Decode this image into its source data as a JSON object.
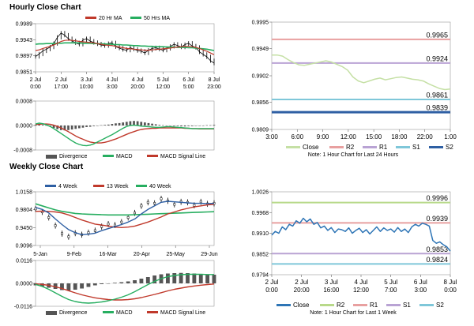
{
  "titles": {
    "hourly": "Hourly Close Chart",
    "weekly": "Weekly Close Chart"
  },
  "chart_data": [
    {
      "id": "hourly_price",
      "type": "line",
      "legend": [
        "20 Hr MA",
        "50 Hrs MA"
      ],
      "ylim": [
        0.9851,
        0.9989
      ],
      "yticks": [
        "0.9989",
        "0.9943",
        "0.9897",
        "0.9851"
      ],
      "yvals": [
        0.9989,
        0.9943,
        0.9897,
        0.9851
      ],
      "xticks": [
        [
          "2 Jul",
          "0:00"
        ],
        [
          "2 Jul",
          "17:00"
        ],
        [
          "3 Jul",
          "10:00"
        ],
        [
          "4 Jul",
          "3:00"
        ],
        [
          "4 Jul",
          "20:00"
        ],
        [
          "5 Jul",
          "12:00"
        ],
        [
          "6 Jul",
          "5:00"
        ],
        [
          "8 Jul",
          "23:00"
        ]
      ],
      "series": [
        {
          "name": "Close",
          "values": [
            0.9895,
            0.9902,
            0.9911,
            0.9916,
            0.9922,
            0.9932,
            0.995,
            0.9962,
            0.9956,
            0.9946,
            0.994,
            0.9934,
            0.993,
            0.9942,
            0.9946,
            0.9939,
            0.9935,
            0.9931,
            0.9928,
            0.9926,
            0.9932,
            0.9934,
            0.9923,
            0.9919,
            0.9915,
            0.9913,
            0.992,
            0.9916,
            0.9912,
            0.991,
            0.9905,
            0.9913,
            0.9918,
            0.992,
            0.9916,
            0.9913,
            0.9918,
            0.9924,
            0.993,
            0.9926,
            0.9922,
            0.9929,
            0.9933,
            0.9925,
            0.9921,
            0.9908,
            0.9901,
            0.9894,
            0.9883,
            0.9876
          ]
        },
        {
          "name": "20 Hr MA",
          "values": [
            0.9912,
            0.9914,
            0.9918,
            0.9921,
            0.9924,
            0.9928,
            0.9933,
            0.9938,
            0.9941,
            0.9942,
            0.9941,
            0.994,
            0.9938,
            0.9937,
            0.9936,
            0.9935,
            0.9934,
            0.9932,
            0.993,
            0.9928,
            0.9927,
            0.9926,
            0.9924,
            0.9922,
            0.992,
            0.9918,
            0.9917,
            0.9916,
            0.9915,
            0.9914,
            0.9913,
            0.9913,
            0.9914,
            0.9915,
            0.9916,
            0.9917,
            0.9918,
            0.9919,
            0.9921,
            0.9922,
            0.9923,
            0.9924,
            0.9924,
            0.9923,
            0.9921,
            0.9918,
            0.9914,
            0.991,
            0.9905,
            0.99
          ]
        },
        {
          "name": "50 Hrs MA",
          "values": [
            0.993,
            0.9931,
            0.9931,
            0.9932,
            0.9932,
            0.9932,
            0.9933,
            0.9933,
            0.9934,
            0.9934,
            0.9934,
            0.9934,
            0.9934,
            0.9933,
            0.9933,
            0.9933,
            0.9932,
            0.9932,
            0.9931,
            0.9931,
            0.993,
            0.993,
            0.9929,
            0.9929,
            0.9928,
            0.9928,
            0.9927,
            0.9926,
            0.9926,
            0.9925,
            0.9925,
            0.9924,
            0.9924,
            0.9923,
            0.9923,
            0.9923,
            0.9922,
            0.9922,
            0.9922,
            0.9921,
            0.9921,
            0.9921,
            0.992,
            0.992,
            0.9919,
            0.9918,
            0.9917,
            0.9916,
            0.9914,
            0.9912
          ]
        }
      ],
      "colors": {
        "close": "#000000",
        "ma1": "#c0392b",
        "ma2": "#27ae60"
      }
    },
    {
      "id": "hourly_macd",
      "type": "bar+line",
      "ylim": [
        -0.0008,
        0.0008
      ],
      "yticks": [
        "0.0008",
        "0.0000",
        "-0.0008"
      ],
      "yvals": [
        0.0008,
        0.0,
        -0.0008
      ],
      "legend": [
        "Divergence",
        "MACD",
        "MACD Signal Line"
      ],
      "series": [
        {
          "name": "Divergence",
          "values": [
            2e-05,
            3e-05,
            2e-05,
            1e-05,
            -3e-05,
            -8e-05,
            -0.00012,
            -0.00015,
            -0.00016,
            -0.00015,
            -0.00013,
            -0.00011,
            -9e-05,
            -7e-05,
            -5e-05,
            -4e-05,
            -2e-05,
            -1e-05,
            1e-05,
            2e-05,
            3e-05,
            5e-05,
            7e-05,
            8e-05,
            0.0001,
            0.00012,
            0.00014,
            0.00015,
            0.00014,
            0.00012,
            0.0001,
            8e-05,
            6e-05,
            4e-05,
            2e-05,
            1e-05,
            0.0,
            -1e-05,
            -2e-05,
            -2e-05,
            -3e-05,
            -3e-05,
            -2e-05,
            -2e-05,
            -1e-05,
            -1e-05,
            0.0,
            1e-05,
            1e-05,
            2e-05
          ]
        },
        {
          "name": "MACD",
          "values": [
            5e-05,
            8e-05,
            6e-05,
            2e-05,
            -3e-05,
            -0.0001,
            -0.00018,
            -0.00026,
            -0.00034,
            -0.00042,
            -0.0005,
            -0.00057,
            -0.00062,
            -0.00065,
            -0.00066,
            -0.00064,
            -0.0006,
            -0.00054,
            -0.00048,
            -0.00042,
            -0.00036,
            -0.0003,
            -0.00023,
            -0.00016,
            -9e-05,
            -3e-05,
            0.0,
            1e-05,
            0.0,
            -2e-05,
            -3e-05,
            -4e-05,
            -5e-05,
            -6e-05,
            -6e-05,
            -5e-05,
            -4e-05,
            -4e-05,
            -5e-05,
            -6e-05,
            -7e-05,
            -8e-05,
            -9e-05,
            -0.0001,
            -0.0001,
            -0.0001,
            -0.0001,
            -0.0001,
            -0.0001,
            -0.0001
          ]
        },
        {
          "name": "MACD Signal Line",
          "values": [
            3e-05,
            4e-05,
            5e-05,
            5e-05,
            4e-05,
            1e-05,
            -3e-05,
            -8e-05,
            -0.00014,
            -0.0002,
            -0.00027,
            -0.00034,
            -0.0004,
            -0.00045,
            -0.0005,
            -0.00054,
            -0.00056,
            -0.00057,
            -0.00057,
            -0.00055,
            -0.00052,
            -0.00048,
            -0.00044,
            -0.00039,
            -0.00034,
            -0.00029,
            -0.00024,
            -0.0002,
            -0.00016,
            -0.00013,
            -0.00011,
            -0.0001,
            -9e-05,
            -9e-05,
            -8e-05,
            -8e-05,
            -8e-05,
            -8e-05,
            -8e-05,
            -8e-05,
            -8e-05,
            -9e-05,
            -9e-05,
            -0.0001,
            -0.0001,
            -0.00011,
            -0.00011,
            -0.00011,
            -0.00011,
            -0.00011
          ]
        }
      ],
      "colors": {
        "div": "#555555",
        "macd": "#27ae60",
        "signal": "#c0392b"
      }
    },
    {
      "id": "hourly_levels",
      "type": "line",
      "ylim": [
        0.9809,
        0.9995
      ],
      "yticks": [
        "0.9995",
        "0.9949",
        "0.9902",
        "0.9856",
        "0.9809"
      ],
      "yvals": [
        0.9995,
        0.9949,
        0.9902,
        0.9856,
        0.9809
      ],
      "xticks": [
        "3:00",
        "6:00",
        "9:00",
        "12:00",
        "15:00",
        "18:00",
        "22:00",
        "1:00"
      ],
      "levels": [
        {
          "name": "R2",
          "value": 0.9965,
          "label": "0.9965",
          "color": "#e8a0a0"
        },
        {
          "name": "R1",
          "value": 0.9924,
          "label": "0.9924",
          "color": "#b9a3d4"
        },
        {
          "name": "S1",
          "value": 0.9861,
          "label": "0.9861",
          "color": "#7fc7d9"
        },
        {
          "name": "S2",
          "value": 0.9839,
          "label": "0.9839",
          "color": "#2e5fa3"
        }
      ],
      "close": {
        "name": "Close",
        "color": "#c5e0a5",
        "values": [
          0.9938,
          0.9938,
          0.9936,
          0.993,
          0.9925,
          0.9921,
          0.992,
          0.9922,
          0.9924,
          0.9926,
          0.9928,
          0.9926,
          0.9922,
          0.9918,
          0.9912,
          0.99,
          0.9893,
          0.989,
          0.9893,
          0.9896,
          0.9898,
          0.9895,
          0.9897,
          0.9899,
          0.99,
          0.9898,
          0.9896,
          0.9895,
          0.9893,
          0.9888,
          0.9884,
          0.988,
          0.9878,
          0.9879
        ]
      },
      "legend": [
        "Close",
        "R2",
        "R1",
        "S1",
        "S2"
      ],
      "note": "Note: 1 Hour Chart for Last 24 Hours"
    },
    {
      "id": "weekly_price",
      "type": "line",
      "legend": [
        "4 Week",
        "13 Week",
        "40 Week"
      ],
      "ylim": [
        0.9096,
        1.0158
      ],
      "yticks": [
        "1.0158",
        "0.9804",
        "0.9450",
        "0.9096"
      ],
      "yvals": [
        1.0158,
        0.9804,
        0.945,
        0.9096
      ],
      "xticks": [
        "5-Jan",
        "9-Feb",
        "16-Mar",
        "20-Apr",
        "25-May",
        "29-Jun"
      ],
      "series": [
        {
          "name": "Close",
          "values": [
            0.982,
            0.976,
            0.965,
            0.949,
            0.933,
            0.927,
            0.934,
            0.931,
            0.935,
            0.939,
            0.947,
            0.952,
            0.95,
            0.956,
            0.965,
            0.974,
            0.988,
            0.995,
            0.993,
            1.002,
            0.998,
            0.991,
            0.996,
            0.995,
            0.989,
            0.996,
            0.992,
            0.993
          ]
        },
        {
          "name": "4 Week",
          "values": [
            0.985,
            0.981,
            0.974,
            0.962,
            0.951,
            0.941,
            0.935,
            0.931,
            0.932,
            0.934,
            0.939,
            0.943,
            0.947,
            0.951,
            0.956,
            0.962,
            0.972,
            0.981,
            0.988,
            0.995,
            0.997,
            0.996,
            0.995,
            0.994,
            0.993,
            0.993,
            0.9925,
            0.993
          ]
        },
        {
          "name": "13 Week",
          "values": [
            0.977,
            0.9775,
            0.977,
            0.976,
            0.974,
            0.97,
            0.965,
            0.96,
            0.956,
            0.952,
            0.95,
            0.948,
            0.946,
            0.945,
            0.946,
            0.948,
            0.952,
            0.956,
            0.961,
            0.966,
            0.972,
            0.976,
            0.98,
            0.983,
            0.986,
            0.988,
            0.99,
            0.991
          ]
        },
        {
          "name": "40 Week",
          "values": [
            0.992,
            0.988,
            0.984,
            0.98,
            0.977,
            0.975,
            0.973,
            0.972,
            0.9715,
            0.971,
            0.9705,
            0.97,
            0.97,
            0.97,
            0.97,
            0.9705,
            0.971,
            0.9715,
            0.972,
            0.9725,
            0.973,
            0.9735,
            0.974,
            0.9745,
            0.975,
            0.9755,
            0.976,
            0.9765
          ]
        }
      ],
      "colors": {
        "close": "#000000",
        "w4": "#2e5fa3",
        "w13": "#c0392b",
        "w40": "#27ae60"
      }
    },
    {
      "id": "weekly_macd",
      "type": "bar+line",
      "ylim": [
        -0.0116,
        0.0116
      ],
      "yticks": [
        "0.0116",
        "0.0000",
        "-0.0116"
      ],
      "yvals": [
        0.0116,
        0.0,
        -0.0116
      ],
      "legend": [
        "Divergence",
        "MACD",
        "MACD Signal Line"
      ],
      "series": [
        {
          "name": "Divergence",
          "values": [
            -0.001,
            -0.0016,
            -0.0022,
            -0.0028,
            -0.0034,
            -0.0036,
            -0.0032,
            -0.0026,
            -0.0018,
            -0.001,
            -0.0004,
            0.0,
            0.0003,
            0.0006,
            0.001,
            0.0016,
            0.0024,
            0.0032,
            0.004,
            0.0046,
            0.005,
            0.0052,
            0.0053,
            0.0052,
            0.005,
            0.0048,
            0.0046,
            0.0044
          ]
        },
        {
          "name": "MACD",
          "values": [
            -0.0005,
            -0.0015,
            -0.003,
            -0.0048,
            -0.0066,
            -0.0082,
            -0.0092,
            -0.0098,
            -0.01,
            -0.0098,
            -0.0094,
            -0.0088,
            -0.008,
            -0.007,
            -0.0058,
            -0.0042,
            -0.0024,
            -0.0006,
            0.001,
            0.0024,
            0.0034,
            0.004,
            0.0044,
            0.0046,
            0.0046,
            0.0046,
            0.0045,
            0.0045
          ]
        },
        {
          "name": "MACD Signal Line",
          "values": [
            -0.0002,
            -0.0005,
            -0.001,
            -0.0017,
            -0.0026,
            -0.0037,
            -0.0048,
            -0.0058,
            -0.0066,
            -0.0073,
            -0.0078,
            -0.0082,
            -0.0084,
            -0.0084,
            -0.0082,
            -0.0078,
            -0.0072,
            -0.0064,
            -0.0056,
            -0.0047,
            -0.0038,
            -0.003,
            -0.0024,
            -0.0018,
            -0.0013,
            -0.0009,
            -0.0006,
            -0.0003
          ]
        }
      ],
      "colors": {
        "div": "#555555",
        "macd": "#27ae60",
        "signal": "#c0392b"
      }
    },
    {
      "id": "weekly_levels",
      "type": "line",
      "ylim": [
        0.9794,
        1.0026
      ],
      "yticks": [
        "1.0026",
        "0.9968",
        "0.9910",
        "0.9852",
        "0.9794"
      ],
      "yvals": [
        1.0026,
        0.9968,
        0.991,
        0.9852,
        0.9794
      ],
      "xticks": [
        [
          "2 Jul",
          "0:00"
        ],
        [
          "2 Jul",
          "20:00"
        ],
        [
          "3 Jul",
          "16:00"
        ],
        [
          "4 Jul",
          "12:00"
        ],
        [
          "5 Jul",
          "7:00"
        ],
        [
          "6 Jul",
          "3:00"
        ],
        [
          "8 Jul",
          "0:00"
        ]
      ],
      "levels": [
        {
          "name": "R2",
          "value": 0.9996,
          "label": "0.9996",
          "color": "#b8d98a"
        },
        {
          "name": "R1",
          "value": 0.9939,
          "label": "0.9939",
          "color": "#e8a0a0"
        },
        {
          "name": "S1",
          "value": 0.9853,
          "label": "0.9853",
          "color": "#b9a3d4"
        },
        {
          "name": "S2",
          "value": 0.9824,
          "label": "0.9824",
          "color": "#7fc7d9"
        }
      ],
      "close": {
        "name": "Close",
        "color": "#2e75b6",
        "values": [
          0.9905,
          0.9915,
          0.991,
          0.9928,
          0.992,
          0.9935,
          0.993,
          0.9945,
          0.9938,
          0.9952,
          0.9942,
          0.995,
          0.9935,
          0.994,
          0.9925,
          0.993,
          0.9918,
          0.9926,
          0.9912,
          0.9922,
          0.992,
          0.9915,
          0.9925,
          0.991,
          0.9918,
          0.9924,
          0.9912,
          0.992,
          0.9908,
          0.9918,
          0.9928,
          0.9915,
          0.9925,
          0.9918,
          0.9922,
          0.9913,
          0.9926,
          0.9915,
          0.9922,
          0.9912,
          0.9928,
          0.9935,
          0.993,
          0.9938,
          0.9935,
          0.993,
          0.989,
          0.9882,
          0.9886,
          0.9878,
          0.9872,
          0.986
        ]
      },
      "legend": [
        "Close",
        "R2",
        "R1",
        "S1",
        "S2"
      ],
      "note": "Note: 1 Hour Chart for Last 1 Week"
    }
  ]
}
